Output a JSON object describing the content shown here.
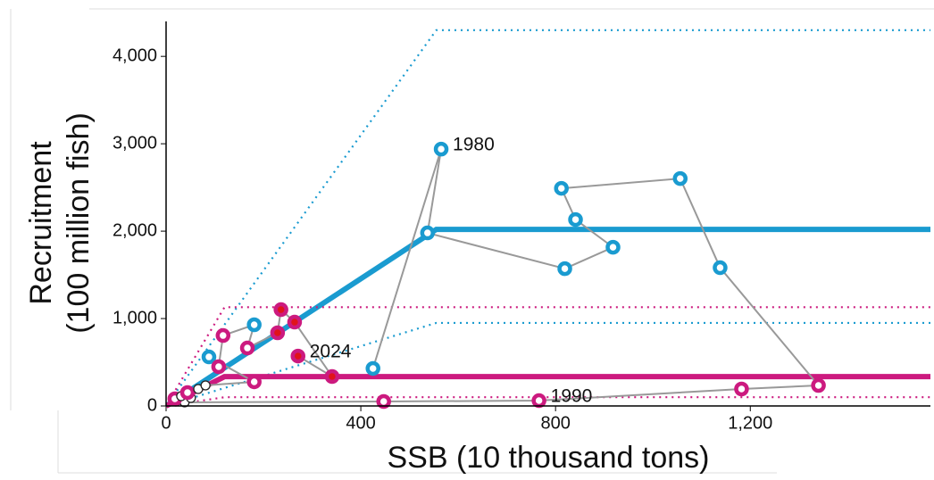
{
  "chart_data": {
    "type": "scatter",
    "xlabel": "SSB (10 thousand tons)",
    "ylabel": [
      "Recruitment",
      "(100 million fish)"
    ],
    "xlim": [
      0,
      1570
    ],
    "ylim": [
      0,
      4400
    ],
    "xticks": [
      0,
      400,
      800,
      {
        "value": 1200,
        "label": "1,200"
      }
    ],
    "yticks": [
      0,
      {
        "value": 1000,
        "label": "1,000"
      },
      {
        "value": 2000,
        "label": "2,000"
      },
      {
        "value": 3000,
        "label": "3,000"
      },
      {
        "value": 4000,
        "label": "4,000"
      }
    ],
    "path_color": "#999999",
    "series": [
      {
        "x": [
          425,
          565,
          537,
          819,
          918,
          841,
          812,
          1056,
          1138,
          1340,
          1182,
          766,
          447,
          38,
          20,
          51,
          18,
          31,
          44,
          66,
          81,
          181,
          88,
          108,
          117,
          181,
          167,
          229,
          236,
          264,
          341,
          271
        ],
        "y": [
          429,
          2939,
          1980,
          1571,
          1816,
          2133,
          2490,
          2602,
          1582,
          235,
          194,
          61,
          51,
          41,
          51,
          92,
          82,
          112,
          153,
          194,
          235,
          276,
          561,
          449,
          806,
          929,
          663,
          837,
          1102,
          959,
          337,
          571
        ],
        "edge_colors": [
          "#1a9bd0",
          "#1a9bd0",
          "#1a9bd0",
          "#1a9bd0",
          "#1a9bd0",
          "#1a9bd0",
          "#1a9bd0",
          "#1a9bd0",
          "#1a9bd0",
          "#cc1a7f",
          "#cc1a7f",
          "#cc1a7f",
          "#cc1a7f",
          "#222222",
          "#222222",
          "#222222",
          "#cc1a7f",
          "#222222",
          "#cc1a7f",
          "#222222",
          "#222222",
          "#cc1a7f",
          "#1a9bd0",
          "#cc1a7f",
          "#cc1a7f",
          "#1a9bd0",
          "#cc1a7f",
          "#cc1a7f",
          "#cc1a7f",
          "#cc1a7f",
          "#cc1a7f",
          "#cc1a7f"
        ],
        "fill_colors": [
          "#ffffff",
          "#ffffff",
          "#ffffff",
          "#ffffff",
          "#ffffff",
          "#ffffff",
          "#ffffff",
          "#ffffff",
          "#ffffff",
          "#ffffff",
          "#ffffff",
          "#ffffff",
          "#ffffff",
          "#ffffff",
          "#ffffff",
          "#ffffff",
          "#ffffff",
          "#ffffff",
          "#ffffff",
          "#ffffff",
          "#ffffff",
          "#ffffff",
          "#ffffff",
          "#ffffff",
          "#ffffff",
          "#ffffff",
          "#ffffff",
          "#e0141a",
          "#e0141a",
          "#e0141a",
          "#e0141a",
          "#e0141a"
        ]
      }
    ],
    "annotations": [
      {
        "text": "1980",
        "point": 1
      },
      {
        "text": "1990",
        "point": 11
      },
      {
        "text": "2024",
        "point": 31
      }
    ],
    "reference_lines": [
      {
        "color": "#1a9bd0",
        "style": "solid",
        "x": [
          0,
          555,
          1570
        ],
        "y": [
          0,
          2020,
          2020
        ]
      },
      {
        "color": "#1a9bd0",
        "style": "dotted",
        "x": [
          0,
          555,
          1570
        ],
        "y": [
          0,
          4300,
          4300
        ]
      },
      {
        "color": "#1a9bd0",
        "style": "dotted",
        "x": [
          0,
          555,
          1570
        ],
        "y": [
          0,
          950,
          950
        ]
      },
      {
        "color": "#cc1a7f",
        "style": "solid",
        "x": [
          0,
          120,
          1570
        ],
        "y": [
          0,
          335,
          335
        ]
      },
      {
        "color": "#cc1a7f",
        "style": "dotted",
        "x": [
          0,
          120,
          1570
        ],
        "y": [
          0,
          1130,
          1130
        ]
      },
      {
        "color": "#cc1a7f",
        "style": "dotted",
        "x": [
          0,
          120,
          1570
        ],
        "y": [
          0,
          100,
          100
        ]
      }
    ]
  }
}
